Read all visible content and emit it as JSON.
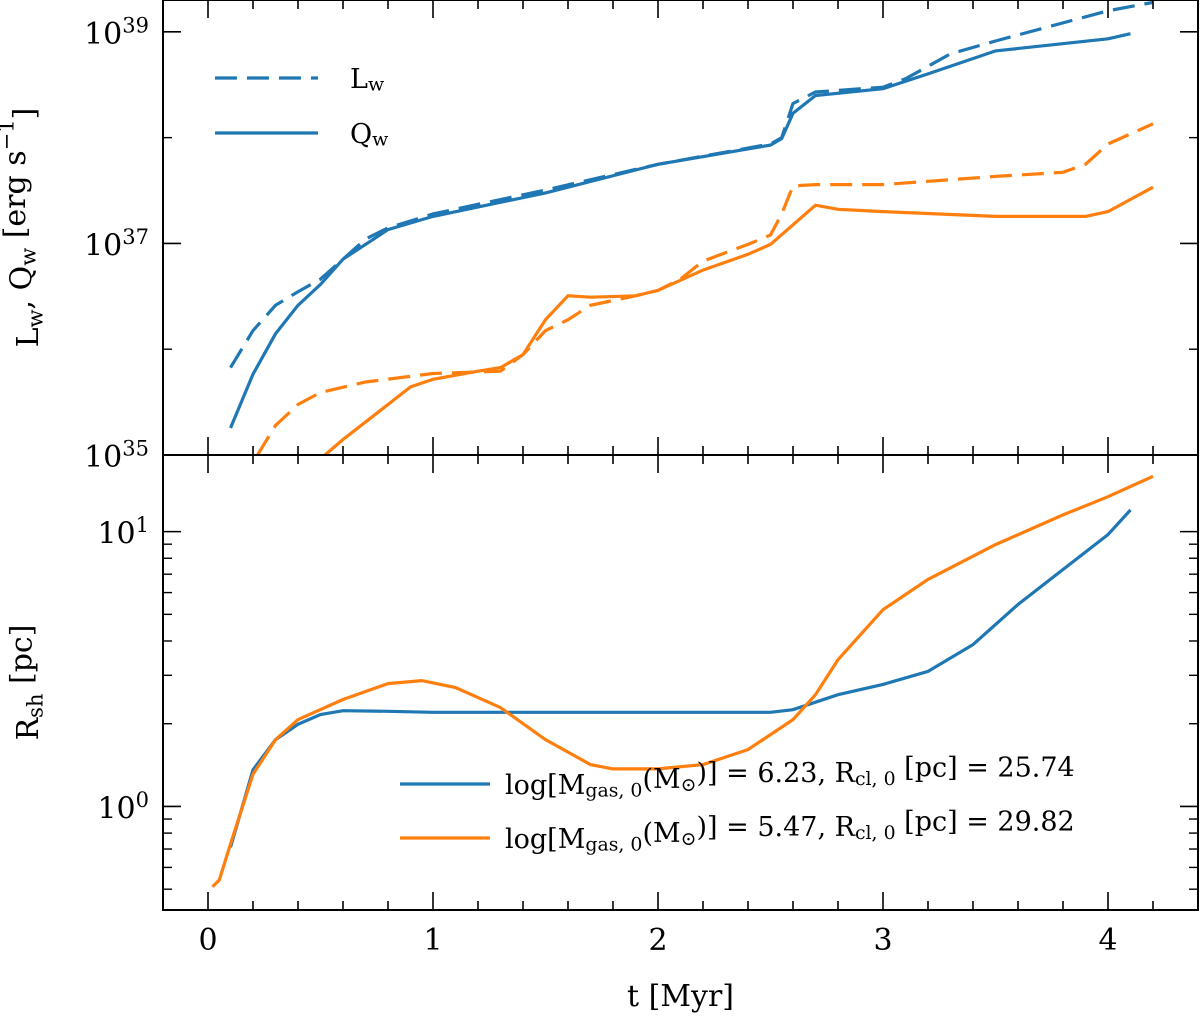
{
  "chart_data": [
    {
      "type": "line",
      "log_y": true,
      "legend_loc": "upper left",
      "ylabel": "L_{w}, Q_{w} [erg s^{−1}]",
      "xlim": [
        -0.2,
        4.4
      ],
      "xmajor": [
        0,
        1,
        2,
        3,
        4
      ],
      "xminor": [
        -0.2,
        0.2,
        0.4,
        0.6,
        0.8,
        1.2,
        1.4,
        1.6,
        1.8,
        2.2,
        2.4,
        2.6,
        2.8,
        3.2,
        3.4,
        3.6,
        3.8,
        4.2,
        4.4
      ],
      "ylim": [
        1e+35,
        2e+39
      ],
      "yticks": [
        {
          "value": 1e+35,
          "label": "10^{35}"
        },
        {
          "value": 1e+37,
          "label": "10^{37}"
        },
        {
          "value": 1e+39,
          "label": "10^{39}"
        }
      ],
      "yminor": [
        1e+36,
        1e+38
      ],
      "legend": [
        {
          "name": "L_{w}",
          "style": "dashed",
          "color": "#1f77b4"
        },
        {
          "name": "Q_{w}",
          "style": "solid",
          "color": "#1f77b4"
        }
      ],
      "series": [
        {
          "color": "#1f77b4",
          "style": "dashed",
          "x": [
            0.1,
            0.2,
            0.3,
            0.4,
            0.5,
            0.6,
            0.7,
            0.8,
            1.0,
            1.5,
            2.0,
            2.5,
            2.55,
            2.6,
            2.7,
            3.0,
            3.1,
            3.3,
            3.5,
            4.0,
            4.2
          ],
          "values": [
            6.7e+35,
            1.5e+36,
            2.6e+36,
            3.5e+36,
            4.6e+36,
            7.1e+36,
            1.1e+37,
            1.4e+37,
            1.9e+37,
            3.2e+37,
            5.6e+37,
            8.7e+37,
            1e+38,
            2.1e+38,
            2.7e+38,
            3e+38,
            3.6e+38,
            6.2e+38,
            8.2e+38,
            1.58e+39,
            1.9e+39
          ]
        },
        {
          "color": "#1f77b4",
          "style": "solid",
          "x": [
            0.1,
            0.2,
            0.3,
            0.4,
            0.5,
            0.6,
            0.7,
            0.8,
            1.0,
            1.5,
            2.0,
            2.5,
            2.55,
            2.6,
            2.7,
            3.0,
            3.2,
            3.5,
            4.0,
            4.1
          ],
          "values": [
            1.8e+35,
            5.8e+35,
            1.4e+36,
            2.6e+36,
            4.1e+36,
            7.1e+36,
            9.8e+36,
            1.35e+37,
            1.8e+37,
            3e+37,
            5.6e+37,
            8.5e+37,
            9.8e+37,
            1.7e+38,
            2.5e+38,
            2.9e+38,
            4e+38,
            6.6e+38,
            8.6e+38,
            9.6e+38
          ]
        },
        {
          "color": "#ff7f0e",
          "style": "dashed",
          "x": [
            0.22,
            0.3,
            0.4,
            0.5,
            0.7,
            1.0,
            1.3,
            1.4,
            1.5,
            1.6,
            1.7,
            1.9,
            2.0,
            2.1,
            2.2,
            2.4,
            2.5,
            2.55,
            2.6,
            2.7,
            3.0,
            3.5,
            3.8,
            3.9,
            4.0,
            4.2
          ],
          "values": [
            1e+35,
            1.9e+35,
            3e+35,
            3.9e+35,
            4.9e+35,
            5.9e+35,
            6.2e+35,
            8.9e+35,
            1.5e+36,
            1.9e+36,
            2.6e+36,
            3.2e+36,
            3.6e+36,
            4.6e+36,
            6.8e+36,
            9.8e+36,
            1.2e+37,
            1.9e+37,
            3.5e+37,
            3.6e+37,
            3.6e+37,
            4.3e+37,
            4.7e+37,
            5.6e+37,
            8.7e+37,
            1.35e+38
          ]
        },
        {
          "color": "#ff7f0e",
          "style": "solid",
          "x": [
            0.52,
            0.6,
            0.8,
            0.9,
            1.0,
            1.2,
            1.3,
            1.4,
            1.5,
            1.6,
            1.7,
            1.9,
            2.0,
            2.2,
            2.4,
            2.5,
            2.6,
            2.7,
            2.8,
            3.0,
            3.5,
            3.9,
            4.0,
            4.2
          ],
          "values": [
            1e+35,
            1.4e+35,
            3e+35,
            4.4e+35,
            5.2e+35,
            6.2e+35,
            6.7e+35,
            8.9e+35,
            1.9e+36,
            3.2e+36,
            3.1e+36,
            3.2e+36,
            3.6e+36,
            5.6e+36,
            7.9e+36,
            9.8e+36,
            1.5e+37,
            2.3e+37,
            2.1e+37,
            2e+37,
            1.8e+37,
            1.8e+37,
            2e+37,
            3.4e+37
          ]
        }
      ]
    },
    {
      "type": "line",
      "log_y": true,
      "legend_loc": "lower right",
      "ylabel": "R_{sh} [pc]",
      "xlabel": "t [Myr]",
      "xlim": [
        -0.2,
        4.4
      ],
      "xticks": [
        0,
        1,
        2,
        3,
        4
      ],
      "xminor": [
        -0.2,
        0.2,
        0.4,
        0.6,
        0.8,
        1.2,
        1.4,
        1.6,
        1.8,
        2.2,
        2.4,
        2.6,
        2.8,
        3.2,
        3.4,
        3.6,
        3.8,
        4.2,
        4.4
      ],
      "ylim": [
        0.42,
        19
      ],
      "yticks": [
        {
          "value": 1,
          "label": "10^{0}"
        },
        {
          "value": 10,
          "label": "10^{1}"
        }
      ],
      "yminor": [
        0.5,
        0.6,
        0.7,
        0.8,
        0.9,
        2,
        3,
        4,
        5,
        6,
        7,
        8,
        9
      ],
      "series": [
        {
          "name": "log[M_{gas, 0}(M_{⊙})] = 6.23, R_{cl, 0} [pc] = 25.74",
          "color": "#1f77b4",
          "style": "solid",
          "x": [
            0.1,
            0.2,
            0.3,
            0.4,
            0.5,
            0.6,
            0.8,
            1.0,
            1.5,
            2.0,
            2.5,
            2.6,
            2.8,
            3.0,
            3.2,
            3.4,
            3.6,
            3.8,
            4.0,
            4.1
          ],
          "values": [
            0.71,
            1.36,
            1.75,
            1.99,
            2.16,
            2.23,
            2.22,
            2.2,
            2.2,
            2.2,
            2.2,
            2.25,
            2.55,
            2.78,
            3.1,
            3.88,
            5.43,
            7.28,
            9.75,
            12.0
          ]
        },
        {
          "name": "log[M_{gas, 0}(M_{⊙})] = 5.47, R_{cl, 0} [pc] = 29.82",
          "color": "#ff7f0e",
          "style": "solid",
          "x": [
            0.02,
            0.05,
            0.1,
            0.2,
            0.3,
            0.4,
            0.6,
            0.8,
            0.95,
            1.1,
            1.3,
            1.5,
            1.7,
            1.8,
            2.0,
            2.2,
            2.4,
            2.6,
            2.7,
            2.8,
            3.0,
            3.2,
            3.5,
            3.8,
            4.0,
            4.2
          ],
          "values": [
            0.51,
            0.54,
            0.73,
            1.31,
            1.75,
            2.07,
            2.45,
            2.8,
            2.87,
            2.71,
            2.29,
            1.75,
            1.42,
            1.37,
            1.37,
            1.42,
            1.61,
            2.07,
            2.55,
            3.42,
            5.2,
            6.7,
            8.97,
            11.5,
            13.4,
            15.9
          ]
        }
      ]
    }
  ]
}
